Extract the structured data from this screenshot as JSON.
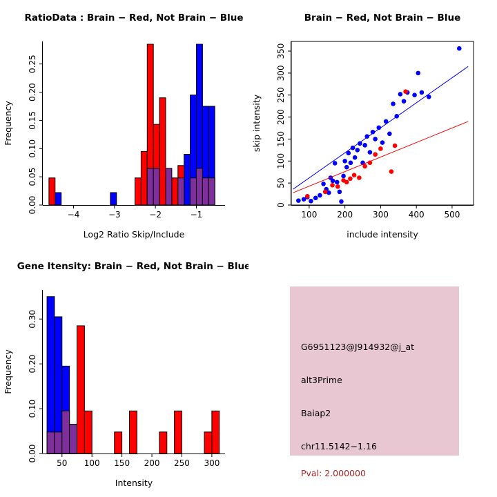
{
  "page": {
    "background": "#FFFFFF"
  },
  "colors": {
    "brain": "#FF0000",
    "not_brain": "#0000FF",
    "overlap": "#7E2F9B",
    "axis": "#000000"
  },
  "chart_data": [
    {
      "id": "ratio_histogram",
      "type": "histogram",
      "title": "RatioData : Brain − Red, Not Brain − Blue",
      "xlabel": "Log2 Ratio Skip/Include",
      "ylabel": "Frequency",
      "xlim": [
        -4.75,
        -0.3
      ],
      "ylim": [
        0,
        0.29
      ],
      "xticks": [
        -4,
        -3,
        -2,
        -1
      ],
      "xtick_labels": [
        "−4",
        "−3",
        "−2",
        "−1"
      ],
      "yticks": [
        0,
        0.05,
        0.1,
        0.15,
        0.2,
        0.25
      ],
      "ytick_labels": [
        "0.00",
        "0.05",
        "0.10",
        "0.15",
        "0.20",
        "0.25"
      ],
      "bin_width": 0.15,
      "grid": false,
      "legend": "none",
      "series": [
        {
          "name": "Not Brain (blue)",
          "color_key": "not_brain",
          "bins": [
            [
              -4.45,
              0.022
            ],
            [
              -3.1,
              0.022
            ],
            [
              -1.45,
              0.04
            ],
            [
              -1.3,
              0.09
            ],
            [
              -1.15,
              0.195
            ],
            [
              -1.0,
              0.285
            ],
            [
              -0.85,
              0.175
            ],
            [
              -0.7,
              0.175
            ]
          ]
        },
        {
          "name": "Brain (red)",
          "color_key": "brain",
          "bins": [
            [
              -4.6,
              0.048
            ],
            [
              -2.5,
              0.048
            ],
            [
              -2.35,
              0.095
            ],
            [
              -2.2,
              0.285
            ],
            [
              -2.05,
              0.143
            ],
            [
              -1.9,
              0.19
            ],
            [
              -1.6,
              0.048
            ],
            [
              -1.45,
              0.07
            ],
            [
              -1.15,
              0.048
            ],
            [
              -1.0,
              0.048
            ],
            [
              -0.85,
              0.048
            ],
            [
              -0.7,
              0.048
            ]
          ]
        },
        {
          "name": "Overlap (purple)",
          "color_key": "overlap",
          "bins": [
            [
              -2.2,
              0.065
            ],
            [
              -2.05,
              0.065
            ],
            [
              -1.75,
              0.065
            ],
            [
              -1.45,
              0.048
            ],
            [
              -1.15,
              0.048
            ],
            [
              -1.0,
              0.065
            ],
            [
              -0.85,
              0.048
            ],
            [
              -0.7,
              0.048
            ]
          ]
        }
      ]
    },
    {
      "id": "intensity_scatter",
      "type": "scatter",
      "title": "Brain − Red, Not Brain − Blue",
      "xlabel": "include intensity",
      "ylabel": "skip intensity",
      "xlim": [
        50,
        560
      ],
      "ylim": [
        0,
        372
      ],
      "xticks": [
        100,
        200,
        300,
        400,
        500
      ],
      "xtick_labels": [
        "100",
        "200",
        "300",
        "400",
        "500"
      ],
      "yticks": [
        0,
        50,
        100,
        150,
        200,
        250,
        300,
        350
      ],
      "ytick_labels": [
        "0",
        "50",
        "100",
        "150",
        "200",
        "250",
        "300",
        "350"
      ],
      "box": true,
      "grid": false,
      "legend": "none",
      "series": [
        {
          "name": "Not Brain (blue)",
          "color_key": "not_brain",
          "points": [
            [
              70,
              10
            ],
            [
              85,
              13
            ],
            [
              95,
              18
            ],
            [
              105,
              9
            ],
            [
              118,
              16
            ],
            [
              130,
              22
            ],
            [
              140,
              48
            ],
            [
              148,
              36
            ],
            [
              155,
              28
            ],
            [
              160,
              62
            ],
            [
              166,
              55
            ],
            [
              172,
              95
            ],
            [
              178,
              52
            ],
            [
              185,
              30
            ],
            [
              190,
              8
            ],
            [
              196,
              66
            ],
            [
              200,
              100
            ],
            [
              205,
              86
            ],
            [
              210,
              118
            ],
            [
              216,
              96
            ],
            [
              222,
              130
            ],
            [
              228,
              108
            ],
            [
              235,
              125
            ],
            [
              242,
              140
            ],
            [
              250,
              96
            ],
            [
              256,
              136
            ],
            [
              262,
              156
            ],
            [
              270,
              120
            ],
            [
              278,
              166
            ],
            [
              285,
              150
            ],
            [
              295,
              176
            ],
            [
              305,
              142
            ],
            [
              315,
              190
            ],
            [
              325,
              162
            ],
            [
              335,
              230
            ],
            [
              345,
              202
            ],
            [
              355,
              252
            ],
            [
              365,
              236
            ],
            [
              375,
              256
            ],
            [
              395,
              250
            ],
            [
              405,
              300
            ],
            [
              415,
              256
            ],
            [
              435,
              246
            ],
            [
              520,
              356
            ]
          ]
        },
        {
          "name": "Brain (red)",
          "color_key": "brain",
          "points": [
            [
              95,
              20
            ],
            [
              145,
              30
            ],
            [
              165,
              45
            ],
            [
              180,
              42
            ],
            [
              196,
              56
            ],
            [
              205,
              52
            ],
            [
              215,
              60
            ],
            [
              226,
              68
            ],
            [
              240,
              62
            ],
            [
              256,
              88
            ],
            [
              270,
              96
            ],
            [
              285,
              115
            ],
            [
              300,
              128
            ],
            [
              330,
              76
            ],
            [
              340,
              135
            ],
            [
              370,
              258
            ]
          ]
        }
      ],
      "fit_lines": [
        {
          "name": "not-brain-fit-line",
          "color_key": "not_brain",
          "x1": 55,
          "y1": 36,
          "x2": 545,
          "y2": 315
        },
        {
          "name": "brain-fit-line",
          "color_key": "brain",
          "x1": 55,
          "y1": 28,
          "x2": 545,
          "y2": 190
        }
      ]
    },
    {
      "id": "gene_intensity_histogram",
      "type": "histogram",
      "title": "Gene Itensity: Brain − Red, Not Brain − Blue",
      "xlabel": "Intensity",
      "ylabel": "Frequency",
      "xlim": [
        18,
        322
      ],
      "ylim": [
        0,
        0.365
      ],
      "xticks": [
        50,
        100,
        150,
        200,
        250,
        300
      ],
      "xtick_labels": [
        "50",
        "100",
        "150",
        "200",
        "250",
        "300"
      ],
      "yticks": [
        0,
        0.1,
        0.2,
        0.3
      ],
      "ytick_labels": [
        "0.00",
        "0.10",
        "0.20",
        "0.30"
      ],
      "bin_width": 12.5,
      "grid": false,
      "legend": "none",
      "series": [
        {
          "name": "Not Brain (blue)",
          "color_key": "not_brain",
          "bins": [
            [
              25,
              0.35
            ],
            [
              37.5,
              0.305
            ],
            [
              50,
              0.195
            ],
            [
              62.5,
              0.065
            ]
          ]
        },
        {
          "name": "Brain (red)",
          "color_key": "brain",
          "bins": [
            [
              62.5,
              0.065
            ],
            [
              75,
              0.285
            ],
            [
              87.5,
              0.095
            ],
            [
              137.5,
              0.048
            ],
            [
              162.5,
              0.095
            ],
            [
              212.5,
              0.048
            ],
            [
              237.5,
              0.095
            ],
            [
              287.5,
              0.048
            ],
            [
              300,
              0.095
            ]
          ]
        },
        {
          "name": "Overlap (purple)",
          "color_key": "overlap",
          "bins": [
            [
              25,
              0.048
            ],
            [
              37.5,
              0.048
            ],
            [
              50,
              0.095
            ],
            [
              62.5,
              0.065
            ]
          ]
        }
      ]
    }
  ],
  "info_panel": {
    "bg_color": "#E8C7D3",
    "pval_color": "#B22222",
    "lines": [
      {
        "text": "G6951123@J914932@j_at",
        "color": "#000000"
      },
      {
        "text": "alt3Prime",
        "color": "#000000"
      },
      {
        "text": "Baiap2",
        "color": "#000000"
      },
      {
        "text": "chr11.5142−1.16",
        "color": "#000000"
      },
      {
        "text": "Pval: 2.000000",
        "color": "#B22222"
      }
    ]
  }
}
